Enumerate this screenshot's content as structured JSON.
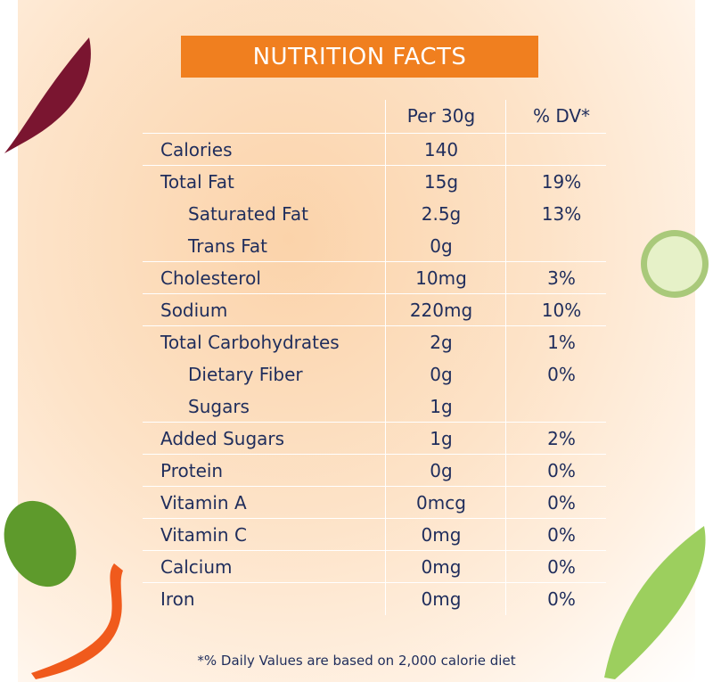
{
  "header": {
    "title": "NUTRITION FACTS"
  },
  "table": {
    "columns": [
      "Per 30g",
      "% DV*"
    ],
    "rows": [
      {
        "label": "Calories",
        "per": "140"
      },
      {
        "label": "Total Fat",
        "per": "15g",
        "dv": "19%",
        "sub": [
          {
            "label": "Saturated Fat",
            "per": "2.5g",
            "dv": "13%"
          },
          {
            "label": "Trans Fat",
            "per": "0g"
          }
        ]
      },
      {
        "label": "Cholesterol",
        "per": "10mg",
        "dv": "3%"
      },
      {
        "label": "Sodium",
        "per": "220mg",
        "dv": "10%"
      },
      {
        "label": "Total Carbohydrates",
        "per": "2g",
        "dv": "1%",
        "sub": [
          {
            "label": "Dietary Fiber",
            "per": "0g",
            "dv": "0%"
          },
          {
            "label": "Sugars",
            "per": "1g"
          }
        ]
      },
      {
        "label": "Added Sugars",
        "per": "1g",
        "dv": "2%"
      },
      {
        "label": "Protein",
        "per": "0g",
        "dv": "0%"
      },
      {
        "label": "Vitamin A",
        "per": "0mcg",
        "dv": "0%"
      },
      {
        "label": "Vitamin C",
        "per": "0mg",
        "dv": "0%"
      },
      {
        "label": "Calcium",
        "per": "0mg",
        "dv": "0%"
      },
      {
        "label": "Iron",
        "per": "0mg",
        "dv": "0%"
      }
    ]
  },
  "footnote": "*% Daily Values are based on 2,000 calorie diet"
}
